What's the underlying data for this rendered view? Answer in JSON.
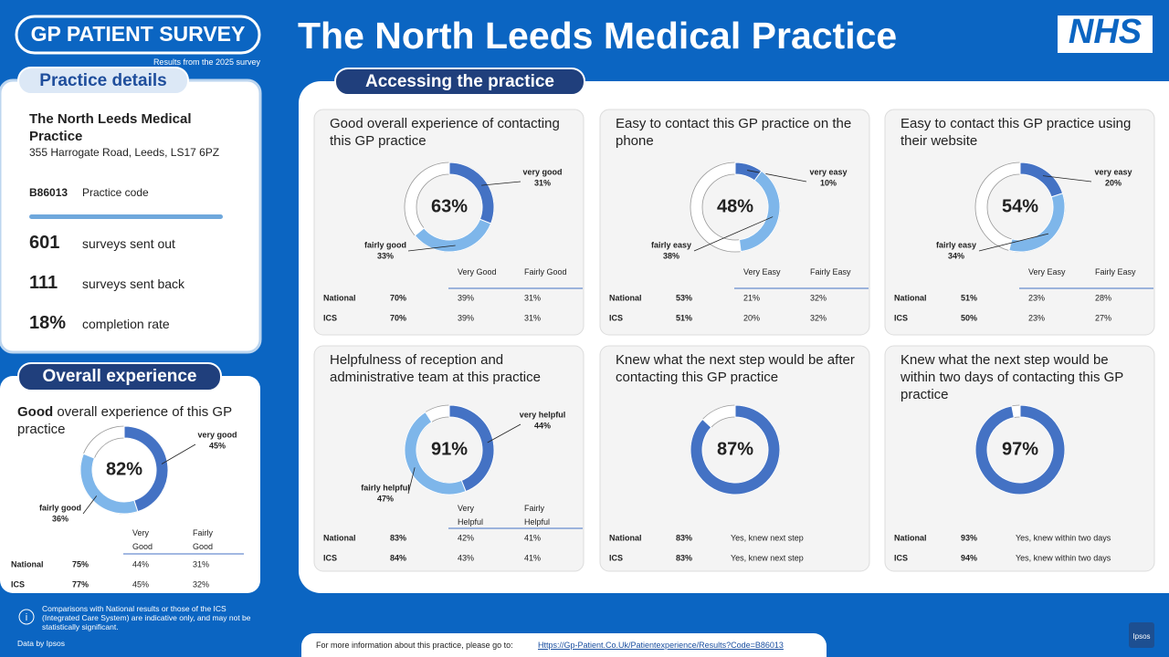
{
  "header": {
    "logo_title": "GP PATIENT SURVEY",
    "logo_subtitle": "Results from the 2025 survey",
    "title": "The North Leeds Medical Practice",
    "nhs": "NHS"
  },
  "colors": [
    "#4472c4",
    "#7eb6ea"
  ],
  "practice_details": {
    "heading": "Practice details",
    "name": "The North Leeds Medical Practice",
    "address": "355 Harrogate Road, Leeds, LS17 6PZ",
    "code": "B86013",
    "code_label": "Practice code",
    "stats": [
      {
        "value": "601",
        "label": "surveys sent out"
      },
      {
        "value": "111",
        "label": "surveys sent back"
      },
      {
        "value": "18%",
        "label": "completion rate"
      }
    ]
  },
  "overall": {
    "heading": "Overall experience",
    "title_bold": "Good",
    "title_rest": "overall experience of this GP practice",
    "total": "82%",
    "segments": [
      {
        "name": "very good",
        "value": 45,
        "value_label": "45%"
      },
      {
        "name": "fairly good",
        "value": 36,
        "value_label": "36%"
      }
    ],
    "table": {
      "columns": [
        "Very Good",
        "Fairly Good"
      ],
      "rows": [
        {
          "name": "National",
          "total": "75%",
          "cells": [
            "44%",
            "31%"
          ]
        },
        {
          "name": "ICS",
          "total": "77%",
          "cells": [
            "45%",
            "32%"
          ]
        }
      ]
    }
  },
  "section_heading": "Accessing the practice",
  "panels": [
    {
      "title": "Good overall experience of contacting this GP practice",
      "total": "63%",
      "segments": [
        {
          "name": "very good",
          "value": 31,
          "value_label": "31%"
        },
        {
          "name": "fairly good",
          "value": 33,
          "value_label": "33%"
        }
      ],
      "table": {
        "columns": [
          "Very Good",
          "Fairly Good"
        ],
        "rows": [
          {
            "name": "National",
            "total": "70%",
            "cells": [
              "39%",
              "31%"
            ]
          },
          {
            "name": "ICS",
            "total": "70%",
            "cells": [
              "39%",
              "31%"
            ]
          }
        ]
      }
    },
    {
      "title": "Easy to contact this GP practice on the phone",
      "total": "48%",
      "segments": [
        {
          "name": "very easy",
          "value": 10,
          "value_label": "10%"
        },
        {
          "name": "fairly easy",
          "value": 38,
          "value_label": "38%"
        }
      ],
      "table": {
        "columns": [
          "Very Easy",
          "Fairly Easy"
        ],
        "rows": [
          {
            "name": "National",
            "total": "53%",
            "cells": [
              "21%",
              "32%"
            ]
          },
          {
            "name": "ICS",
            "total": "51%",
            "cells": [
              "20%",
              "32%"
            ]
          }
        ]
      }
    },
    {
      "title": "Easy to contact this GP practice using their website",
      "total": "54%",
      "segments": [
        {
          "name": "very easy",
          "value": 20,
          "value_label": "20%"
        },
        {
          "name": "fairly easy",
          "value": 34,
          "value_label": "34%"
        }
      ],
      "table": {
        "columns": [
          "Very Easy",
          "Fairly Easy"
        ],
        "rows": [
          {
            "name": "National",
            "total": "51%",
            "cells": [
              "23%",
              "28%"
            ]
          },
          {
            "name": "ICS",
            "total": "50%",
            "cells": [
              "23%",
              "27%"
            ]
          }
        ]
      }
    },
    {
      "title": "Helpfulness of reception and administrative team at this practice",
      "total": "91%",
      "segments": [
        {
          "name": "very helpful",
          "value": 44,
          "value_label": "44%"
        },
        {
          "name": "fairly helpful",
          "value": 47,
          "value_label": "47%"
        }
      ],
      "table": {
        "columns": [
          "Very Helpful",
          "Fairly Helpful"
        ],
        "rows": [
          {
            "name": "National",
            "total": "83%",
            "cells": [
              "42%",
              "41%"
            ]
          },
          {
            "name": "ICS",
            "total": "84%",
            "cells": [
              "43%",
              "41%"
            ]
          }
        ]
      }
    },
    {
      "title": "Knew what the next step would be after contacting this GP practice",
      "total": "87%",
      "segments": [
        {
          "value": 87
        }
      ],
      "table": {
        "rows": [
          {
            "name": "National",
            "total": "83%",
            "cells": [
              "Yes, knew next step"
            ]
          },
          {
            "name": "ICS",
            "total": "83%",
            "cells": [
              "Yes, knew next step"
            ]
          }
        ]
      }
    },
    {
      "title": "Knew what the next step would be within two days of contacting this GP practice",
      "total": "97%",
      "segments": [
        {
          "value": 97
        }
      ],
      "table": {
        "rows": [
          {
            "name": "National",
            "total": "93%",
            "cells": [
              "Yes, knew within two days"
            ]
          },
          {
            "name": "ICS",
            "total": "94%",
            "cells": [
              "Yes, knew within two days"
            ]
          }
        ]
      }
    }
  ],
  "footer": {
    "note": "Comparisons with National results or those of the ICS (Integrated Care System) are indicative only, and may not be statistically significant.",
    "data_by": "Data by Ipsos",
    "more_info": "For more information about this practice, please go to:",
    "link": "Https://Gp-Patient.Co.Uk/Patientexperience/Results?Code=B86013",
    "ipsos": "Ipsos"
  }
}
